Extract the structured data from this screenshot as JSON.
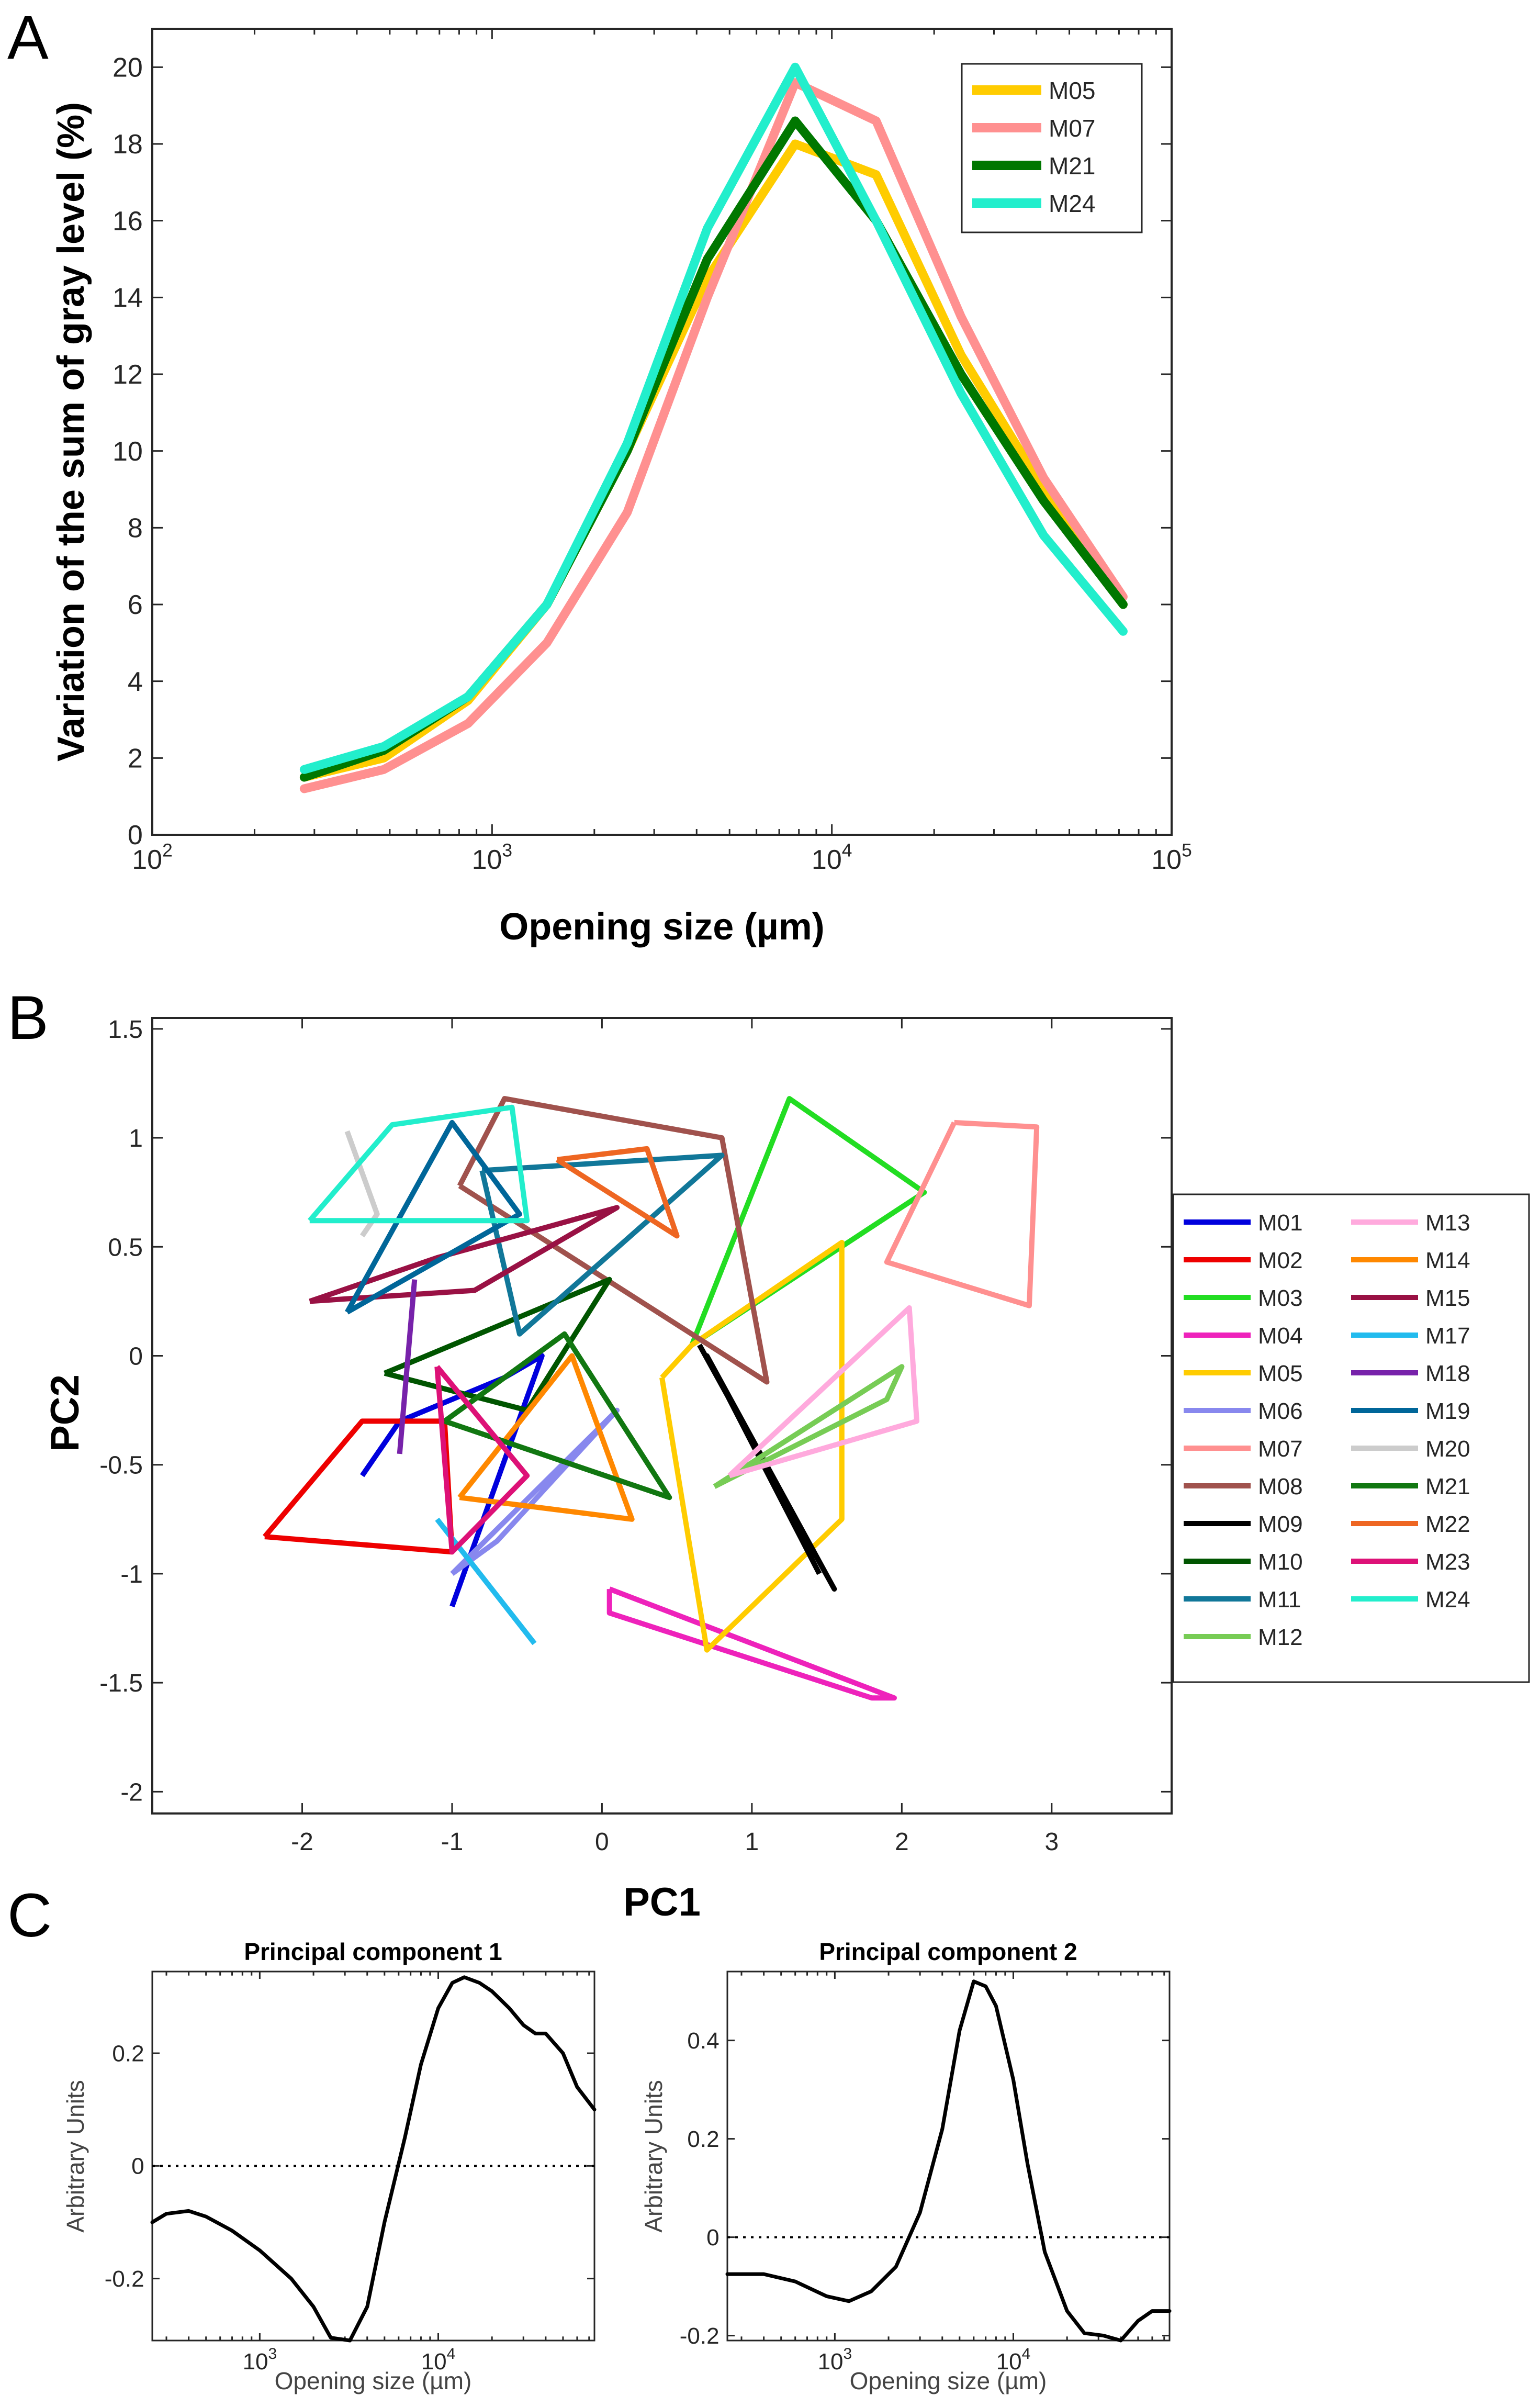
{
  "panel_labels": [
    "A",
    "B",
    "C"
  ],
  "chart_data": [
    {
      "id": "A",
      "type": "line",
      "title": "",
      "xlabel": "Opening size (µm)",
      "ylabel": "Variation of the sum of gray level (%)",
      "xscale": "log",
      "xlim": [
        100,
        100000
      ],
      "ylim": [
        0,
        21
      ],
      "xtick_labels": [
        "10",
        "10",
        "10",
        "10"
      ],
      "xtick_exponents": [
        "2",
        "3",
        "4",
        "5"
      ],
      "ytick_labels": [
        "0",
        "2",
        "4",
        "6",
        "8",
        "10",
        "12",
        "14",
        "16",
        "18",
        "20"
      ],
      "legend_position": "top-right",
      "x": [
        280,
        480,
        850,
        1450,
        2500,
        4300,
        7800,
        13500,
        24000,
        42000,
        72000
      ],
      "series": [
        {
          "name": "M05",
          "color": "#FFCC00",
          "values": [
            1.5,
            2.0,
            3.5,
            6.0,
            10.0,
            14.5,
            18.0,
            17.2,
            12.5,
            9.0,
            6.0
          ]
        },
        {
          "name": "M07",
          "color": "#FF9090",
          "values": [
            1.2,
            1.7,
            2.9,
            5.0,
            8.4,
            14.0,
            19.6,
            18.6,
            13.5,
            9.3,
            6.2
          ]
        },
        {
          "name": "M21",
          "color": "#007700",
          "values": [
            1.5,
            2.2,
            3.6,
            6.0,
            10.0,
            15.0,
            18.6,
            16.0,
            12.0,
            8.7,
            6.0
          ]
        },
        {
          "name": "M24",
          "color": "#22EECC",
          "values": [
            1.7,
            2.3,
            3.6,
            6.0,
            10.2,
            15.8,
            20.0,
            16.0,
            11.5,
            7.8,
            5.3
          ]
        }
      ]
    },
    {
      "id": "B",
      "type": "scatter",
      "title": "",
      "xlabel": "PC1",
      "ylabel": "PC2",
      "xlim": [
        -3,
        3.8
      ],
      "ylim": [
        -2.1,
        1.55
      ],
      "xtick_labels": [
        "-2",
        "-1",
        "0",
        "1",
        "2",
        "3"
      ],
      "xticks": [
        -2,
        -1,
        0,
        1,
        2,
        3
      ],
      "ytick_labels": [
        "-2",
        "-1.5",
        "-1",
        "-0.5",
        "0",
        "0.5",
        "1",
        "1.5"
      ],
      "yticks": [
        -2,
        -1.5,
        -1,
        -0.5,
        0,
        0.5,
        1,
        1.5
      ],
      "legend_position": "outside-right",
      "series": [
        {
          "name": "M01",
          "color": "#0000DD",
          "points": [
            [
              -1.6,
              -0.55
            ],
            [
              -1.35,
              -0.3
            ],
            [
              -0.65,
              -0.1
            ],
            [
              -0.4,
              0.0
            ],
            [
              -1.0,
              -1.15
            ]
          ]
        },
        {
          "name": "M02",
          "color": "#EE0000",
          "points": [
            [
              -2.25,
              -0.83
            ],
            [
              -1.6,
              -0.3
            ],
            [
              -1.05,
              -0.3
            ],
            [
              -1.0,
              -0.9
            ],
            [
              -2.25,
              -0.83
            ]
          ]
        },
        {
          "name": "M03",
          "color": "#22DD22",
          "points": [
            [
              0.6,
              0.05
            ],
            [
              1.25,
              1.18
            ],
            [
              2.15,
              0.75
            ],
            [
              0.6,
              0.05
            ]
          ]
        },
        {
          "name": "M04",
          "color": "#EE22BB",
          "points": [
            [
              0.05,
              -1.07
            ],
            [
              0.05,
              -1.18
            ],
            [
              1.8,
              -1.57
            ],
            [
              1.95,
              -1.57
            ],
            [
              0.05,
              -1.07
            ]
          ]
        },
        {
          "name": "M05",
          "color": "#FFCC00",
          "points": [
            [
              0.4,
              -0.1
            ],
            [
              0.6,
              0.05
            ],
            [
              1.6,
              0.52
            ],
            [
              1.6,
              -0.75
            ],
            [
              0.7,
              -1.35
            ],
            [
              0.4,
              -0.1
            ]
          ]
        },
        {
          "name": "M06",
          "color": "#8888EE",
          "points": [
            [
              -1.0,
              -1.0
            ],
            [
              -0.7,
              -0.85
            ],
            [
              0.1,
              -0.25
            ],
            [
              -1.0,
              -1.0
            ]
          ]
        },
        {
          "name": "M07",
          "color": "#FF9090",
          "points": [
            [
              2.35,
              1.07
            ],
            [
              2.9,
              1.05
            ],
            [
              2.85,
              0.23
            ],
            [
              1.9,
              0.43
            ],
            [
              2.35,
              1.07
            ]
          ]
        },
        {
          "name": "M08",
          "color": "#A0524D",
          "points": [
            [
              -0.95,
              0.78
            ],
            [
              -0.65,
              1.18
            ],
            [
              0.8,
              1.0
            ],
            [
              1.1,
              -0.12
            ],
            [
              -0.95,
              0.78
            ]
          ]
        },
        {
          "name": "M09",
          "color": "#000000",
          "points": [
            [
              0.65,
              0.05
            ],
            [
              1.55,
              -1.07
            ],
            [
              0.7,
              0.0
            ],
            [
              1.45,
              -1.0
            ]
          ]
        },
        {
          "name": "M10",
          "color": "#005500",
          "points": [
            [
              -1.45,
              -0.08
            ],
            [
              0.05,
              0.35
            ],
            [
              -0.5,
              -0.25
            ],
            [
              -1.45,
              -0.08
            ]
          ]
        },
        {
          "name": "M11",
          "color": "#117799",
          "points": [
            [
              -0.8,
              0.85
            ],
            [
              0.8,
              0.92
            ],
            [
              -0.55,
              0.1
            ],
            [
              -0.8,
              0.85
            ]
          ]
        },
        {
          "name": "M12",
          "color": "#77CC55",
          "points": [
            [
              0.75,
              -0.6
            ],
            [
              2.0,
              -0.05
            ],
            [
              1.9,
              -0.2
            ],
            [
              0.75,
              -0.6
            ]
          ]
        },
        {
          "name": "M13",
          "color": "#FFAADD",
          "points": [
            [
              0.85,
              -0.55
            ],
            [
              2.05,
              0.22
            ],
            [
              2.1,
              -0.3
            ],
            [
              0.85,
              -0.55
            ]
          ]
        },
        {
          "name": "M14",
          "color": "#FF8800",
          "points": [
            [
              -0.95,
              -0.65
            ],
            [
              -0.2,
              0.0
            ],
            [
              0.2,
              -0.75
            ],
            [
              -0.95,
              -0.65
            ]
          ]
        },
        {
          "name": "M15",
          "color": "#991144",
          "points": [
            [
              -1.95,
              0.25
            ],
            [
              -1.1,
              0.45
            ],
            [
              0.1,
              0.68
            ],
            [
              -0.85,
              0.3
            ],
            [
              -1.95,
              0.25
            ]
          ]
        },
        {
          "name": "M17",
          "color": "#22BBEE",
          "points": [
            [
              -1.1,
              -0.75
            ],
            [
              -0.45,
              -1.32
            ]
          ]
        },
        {
          "name": "M18",
          "color": "#7722AA",
          "points": [
            [
              -1.25,
              0.35
            ],
            [
              -1.35,
              -0.45
            ]
          ]
        },
        {
          "name": "M19",
          "color": "#006699",
          "points": [
            [
              -1.7,
              0.2
            ],
            [
              -1.0,
              1.07
            ],
            [
              -0.55,
              0.65
            ],
            [
              -1.7,
              0.2
            ]
          ]
        },
        {
          "name": "M20",
          "color": "#CCCCCC",
          "points": [
            [
              -1.7,
              1.03
            ],
            [
              -1.5,
              0.65
            ],
            [
              -1.6,
              0.55
            ]
          ]
        },
        {
          "name": "M21",
          "color": "#117711",
          "points": [
            [
              -1.05,
              -0.3
            ],
            [
              -0.25,
              0.1
            ],
            [
              0.45,
              -0.65
            ],
            [
              -1.05,
              -0.3
            ]
          ]
        },
        {
          "name": "M22",
          "color": "#EE6622",
          "points": [
            [
              -0.3,
              0.9
            ],
            [
              0.3,
              0.95
            ],
            [
              0.5,
              0.55
            ],
            [
              -0.3,
              0.9
            ]
          ]
        },
        {
          "name": "M23",
          "color": "#DD1177",
          "points": [
            [
              -1.1,
              -0.05
            ],
            [
              -0.5,
              -0.55
            ],
            [
              -1.0,
              -0.9
            ],
            [
              -1.1,
              -0.05
            ]
          ]
        },
        {
          "name": "M24",
          "color": "#22EECC",
          "points": [
            [
              -1.95,
              0.62
            ],
            [
              -1.4,
              1.06
            ],
            [
              -0.6,
              1.14
            ],
            [
              -0.5,
              0.62
            ],
            [
              -1.95,
              0.62
            ]
          ]
        }
      ]
    },
    {
      "id": "C1",
      "type": "line",
      "title": "Principal component 1",
      "xlabel": "Opening size (µm)",
      "ylabel": "Arbitrary Units",
      "xscale": "log",
      "xlim": [
        250,
        75000
      ],
      "ylim": [
        -0.31,
        0.345
      ],
      "xtick_labels": [
        "10",
        "10"
      ],
      "xtick_exponents": [
        "3",
        "4"
      ],
      "ytick_labels": [
        "-0.2",
        "0",
        "0.2"
      ],
      "yticks": [
        -0.2,
        0,
        0.2
      ],
      "reference_line": 0,
      "x": [
        250,
        300,
        400,
        500,
        700,
        1000,
        1500,
        2000,
        2500,
        3200,
        4000,
        5000,
        6500,
        8000,
        10000,
        12000,
        14000,
        17000,
        20000,
        25000,
        30000,
        35000,
        40000,
        50000,
        60000,
        75000
      ],
      "series": [
        {
          "name": "PC1",
          "color": "#000000",
          "values": [
            -0.1,
            -0.085,
            -0.08,
            -0.09,
            -0.115,
            -0.15,
            -0.2,
            -0.25,
            -0.305,
            -0.31,
            -0.25,
            -0.1,
            0.05,
            0.18,
            0.28,
            0.325,
            0.335,
            0.325,
            0.31,
            0.28,
            0.25,
            0.235,
            0.235,
            0.2,
            0.14,
            0.1
          ]
        }
      ]
    },
    {
      "id": "C2",
      "type": "line",
      "title": "Principal component 2",
      "xlabel": "Opening size (µm)",
      "ylabel": "Arbitrary Units",
      "xscale": "log",
      "xlim": [
        250,
        75000
      ],
      "ylim": [
        -0.21,
        0.54
      ],
      "xtick_labels": [
        "10",
        "10"
      ],
      "xtick_exponents": [
        "3",
        "4"
      ],
      "ytick_labels": [
        "-0.2",
        "0",
        "0.2",
        "0.4"
      ],
      "yticks": [
        -0.2,
        0,
        0.2,
        0.4
      ],
      "reference_line": 0,
      "x": [
        250,
        400,
        600,
        900,
        1200,
        1600,
        2200,
        3000,
        4000,
        5000,
        6000,
        7000,
        8000,
        10000,
        12000,
        15000,
        20000,
        25000,
        32000,
        40000,
        50000,
        60000,
        75000
      ],
      "series": [
        {
          "name": "PC2",
          "color": "#000000",
          "values": [
            -0.075,
            -0.075,
            -0.09,
            -0.12,
            -0.13,
            -0.11,
            -0.06,
            0.05,
            0.22,
            0.42,
            0.52,
            0.51,
            0.47,
            0.32,
            0.15,
            -0.03,
            -0.15,
            -0.195,
            -0.2,
            -0.21,
            -0.17,
            -0.15,
            -0.15
          ]
        }
      ]
    }
  ]
}
